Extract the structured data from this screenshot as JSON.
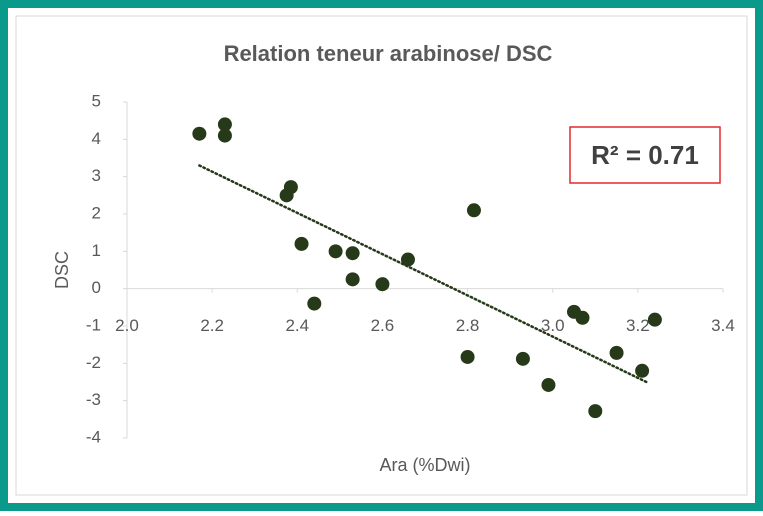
{
  "chart_data": {
    "type": "scatter",
    "title": "Relation teneur arabinose/ DSC",
    "x_label": "Ara (%Dwi)",
    "y_label": "DSC",
    "annotation": "R² = 0.71",
    "color": "#263a1a",
    "x": [
      2.17,
      2.23,
      2.23,
      2.385,
      2.375,
      2.41,
      2.44,
      2.49,
      2.53,
      2.53,
      2.6,
      2.66,
      2.815,
      2.8,
      2.93,
      2.99,
      3.05,
      3.07,
      3.1,
      3.15,
      3.21,
      3.24
    ],
    "values": [
      4.15,
      4.4,
      4.1,
      2.72,
      2.5,
      1.2,
      -0.4,
      1.0,
      0.95,
      0.25,
      0.12,
      0.78,
      2.1,
      -1.83,
      -1.88,
      -2.58,
      -0.62,
      -0.78,
      -3.28,
      -1.72,
      -2.2,
      -0.83
    ],
    "trendline": {
      "x": [
        2.17,
        3.22
      ],
      "values": [
        3.3,
        -2.5
      ],
      "color": "#263a1a"
    },
    "xlim": [
      2.0,
      3.4
    ],
    "xticks": [
      {
        "value": 2,
        "label": "2.0"
      },
      2.2,
      2.4,
      2.6,
      2.8,
      {
        "value": 3,
        "label": "3.0"
      },
      3.2,
      3.4
    ],
    "ylim": [
      -4,
      5
    ],
    "yticks": [
      -4,
      -3,
      -2,
      -1,
      0,
      1,
      2,
      3,
      4,
      5
    ],
    "grid": false
  }
}
